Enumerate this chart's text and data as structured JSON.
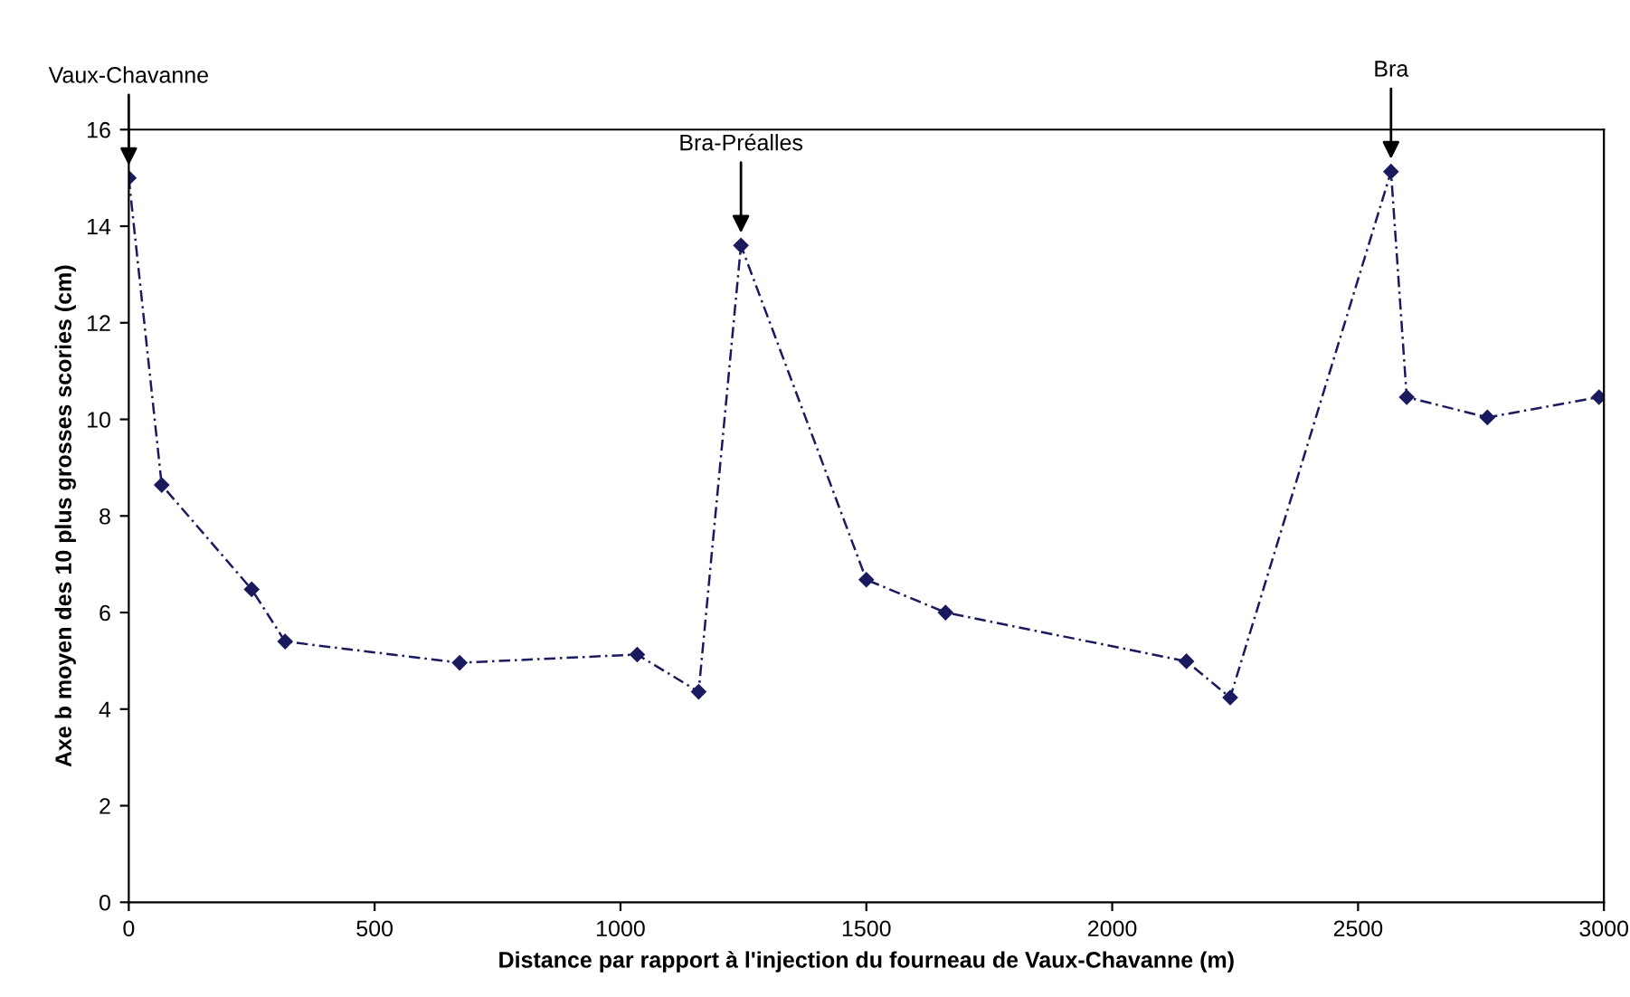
{
  "chart_data": {
    "type": "line",
    "xlabel": "Distance par rapport à l'injection du fourneau de Vaux-Chavanne (m)",
    "ylabel": "Axe b moyen des 10 plus grosses scories (cm)",
    "x": [
      0,
      67,
      250,
      318,
      673,
      1034,
      1159,
      1245,
      1500,
      1661,
      2151,
      2240,
      2567,
      2599,
      2763,
      2990
    ],
    "series": [
      {
        "color": "#1a1a5e",
        "values": [
          15.0,
          8.64,
          6.48,
          5.4,
          4.96,
          5.13,
          4.36,
          13.6,
          6.68,
          6.0,
          4.99,
          4.24,
          15.13,
          10.46,
          10.04,
          10.46
        ]
      }
    ],
    "xlim": [
      0,
      3000
    ],
    "xticks": [
      0,
      500,
      1000,
      1500,
      2000,
      2500,
      3000
    ],
    "ylim": [
      0,
      16
    ],
    "yticks": [
      0,
      2,
      4,
      6,
      8,
      10,
      12,
      14,
      16
    ],
    "marker": "diamond",
    "line_style": "dashed",
    "grid": false,
    "legend": false,
    "annotations": [
      {
        "text": "Vaux-Chavanne",
        "x": 0,
        "y": 15.0
      },
      {
        "text": "Bra-Préalles",
        "x": 1245,
        "y": 13.6
      },
      {
        "text": "Bra",
        "x": 2567,
        "y": 15.13
      }
    ]
  }
}
